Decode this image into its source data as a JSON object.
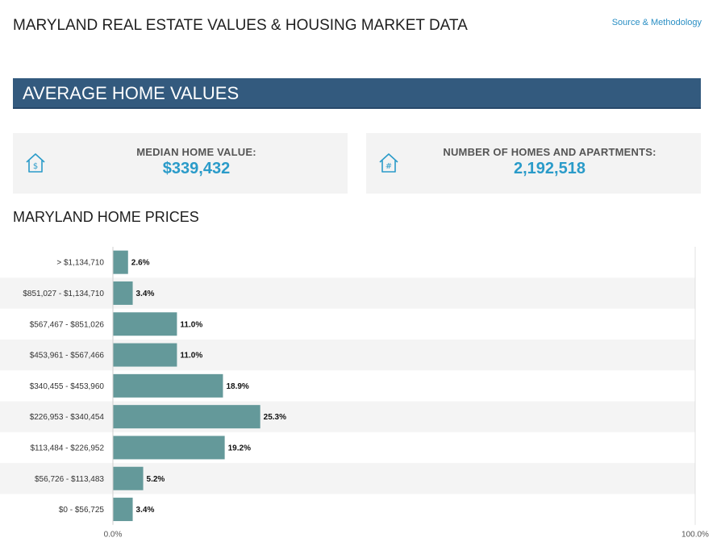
{
  "header": {
    "title": "MARYLAND REAL ESTATE VALUES & HOUSING MARKET DATA",
    "source_link": "Source & Methodology"
  },
  "banner": {
    "title": "AVERAGE HOME VALUES"
  },
  "stats": {
    "median": {
      "label": "MEDIAN HOME VALUE:",
      "value": "$339,432",
      "icon": "house-dollar-icon"
    },
    "homes": {
      "label": "NUMBER OF HOMES AND APARTMENTS:",
      "value": "2,192,518",
      "icon": "house-hash-icon"
    }
  },
  "colors": {
    "banner": "#335a7e",
    "accent": "#2a9bc9",
    "bar": "#64999a",
    "stripe": "#f4f4f4"
  },
  "chart_title": "MARYLAND HOME PRICES",
  "chart_data": {
    "type": "bar",
    "orientation": "horizontal",
    "categories": [
      "> $1,134,710",
      "$851,027 - $1,134,710",
      "$567,467 - $851,026",
      "$453,961 - $567,466",
      "$340,455 - $453,960",
      "$226,953 - $340,454",
      "$113,484 - $226,952",
      "$56,726 - $113,483",
      "$0 - $56,725"
    ],
    "values": [
      2.6,
      3.4,
      11.0,
      11.0,
      18.9,
      25.3,
      19.2,
      5.2,
      3.4
    ],
    "value_labels": [
      "2.6%",
      "3.4%",
      "11.0%",
      "11.0%",
      "18.9%",
      "25.3%",
      "19.2%",
      "5.2%",
      "3.4%"
    ],
    "xlim": [
      0,
      100
    ],
    "x_tick_labels": [
      "0.0%",
      "100.0%"
    ],
    "title": "MARYLAND HOME PRICES",
    "xlabel": "",
    "ylabel": "",
    "grid": false,
    "legend": "none"
  }
}
